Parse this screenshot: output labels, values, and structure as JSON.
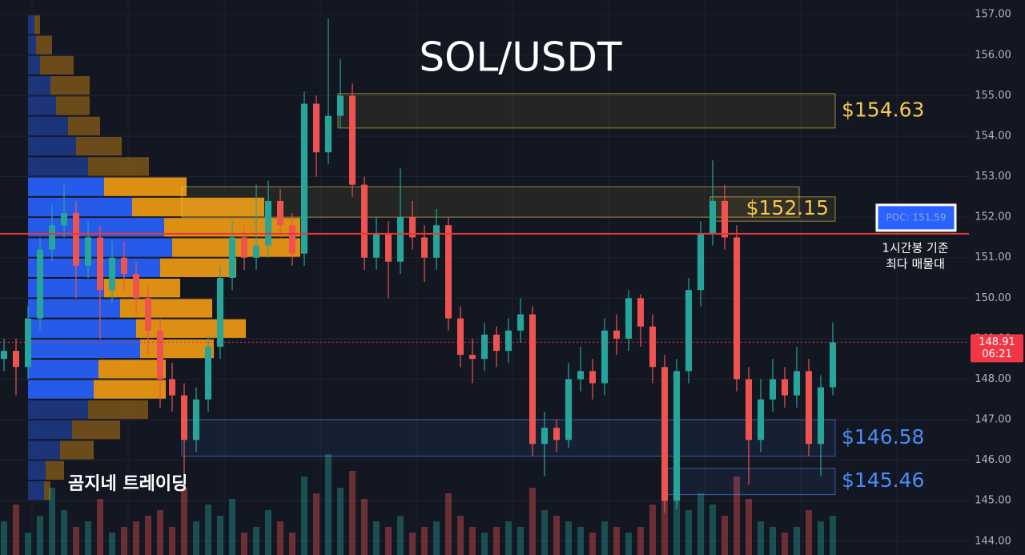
{
  "chart_data": {
    "type": "candlestick",
    "title": "SOL/USDT",
    "watermark": "곰지네 트레이딩",
    "ylim": [
      143.66,
      157.36
    ],
    "yticks": [
      {
        "value": 157,
        "label": "157.00"
      },
      {
        "value": 156,
        "label": "156.00"
      },
      {
        "value": 155,
        "label": "155.00"
      },
      {
        "value": 154,
        "label": "154.00"
      },
      {
        "value": 153,
        "label": "153.00"
      },
      {
        "value": 152,
        "label": "152.00"
      },
      {
        "value": 151,
        "label": "151.00"
      },
      {
        "value": 150,
        "label": "150.00"
      },
      {
        "value": 149,
        "label": "149.00"
      },
      {
        "value": 148,
        "label": "148.00"
      },
      {
        "value": 147,
        "label": "147.00"
      },
      {
        "value": 146,
        "label": "146.00"
      },
      {
        "value": 145,
        "label": "145.00"
      },
      {
        "value": 144,
        "label": "144.00"
      }
    ],
    "grid": true,
    "up_color": "#26a69a",
    "down_color": "#ef5350",
    "open": [
      148.5,
      148.7,
      148.3,
      149.5,
      151.2,
      151.8,
      152.1,
      150.8,
      151.5,
      150.2,
      151.0,
      150.6,
      150.0,
      149.2,
      148.0,
      147.6,
      146.5,
      147.5,
      148.8,
      150.5,
      151.5,
      151.0,
      151.3,
      152.4,
      151.8,
      151.1,
      154.8,
      153.6,
      154.5,
      155.0,
      152.8,
      151.0,
      151.6,
      150.9,
      152.0,
      151.5,
      151.0,
      151.8,
      149.5,
      148.6,
      148.5,
      149.1,
      148.7,
      149.2,
      149.6,
      146.4,
      146.8,
      146.5,
      148.0,
      148.2,
      147.9,
      149.2,
      149.0,
      150.0,
      149.3,
      148.3,
      145.0,
      148.2,
      150.2,
      151.6,
      152.4,
      151.5,
      148.0,
      146.5,
      147.5,
      148.0,
      147.6,
      148.2,
      146.4,
      147.8
    ],
    "high": [
      149.0,
      149.0,
      149.8,
      151.5,
      152.3,
      152.8,
      152.4,
      151.9,
      151.8,
      151.4,
      151.4,
      150.9,
      150.3,
      149.5,
      148.4,
      147.9,
      147.8,
      149.1,
      150.8,
      151.9,
      151.8,
      152.8,
      152.9,
      152.7,
      152.1,
      155.1,
      155.0,
      156.9,
      155.9,
      155.3,
      153.0,
      152.0,
      151.9,
      153.2,
      152.4,
      151.8,
      152.2,
      152.0,
      149.8,
      149.0,
      149.4,
      149.3,
      149.5,
      150.0,
      149.8,
      147.2,
      147.0,
      148.4,
      148.8,
      148.5,
      149.5,
      149.6,
      150.2,
      150.1,
      149.6,
      148.6,
      148.5,
      150.5,
      151.9,
      153.4,
      152.8,
      151.8,
      148.3,
      148.0,
      148.5,
      148.3,
      148.8,
      148.5,
      148.1,
      149.4
    ],
    "low": [
      148.2,
      147.6,
      148.0,
      149.2,
      150.9,
      151.5,
      150.0,
      150.5,
      149.0,
      149.9,
      150.2,
      149.6,
      148.6,
      147.3,
      147.2,
      145.6,
      146.2,
      147.2,
      148.5,
      150.2,
      150.7,
      150.7,
      151.0,
      151.5,
      150.8,
      150.8,
      153.0,
      153.3,
      154.2,
      152.5,
      150.7,
      150.7,
      150.0,
      150.6,
      151.2,
      150.4,
      150.7,
      149.2,
      148.3,
      147.9,
      148.2,
      148.3,
      148.4,
      148.9,
      146.1,
      145.6,
      146.2,
      146.3,
      147.7,
      147.5,
      147.6,
      148.6,
      148.7,
      148.8,
      147.9,
      144.7,
      144.8,
      147.9,
      149.8,
      151.3,
      151.2,
      147.7,
      145.4,
      146.2,
      147.2,
      147.3,
      147.3,
      146.1,
      145.6,
      147.6
    ],
    "close": [
      148.7,
      148.3,
      149.5,
      151.2,
      151.8,
      152.1,
      150.8,
      151.5,
      150.2,
      151.0,
      150.6,
      150.0,
      149.2,
      148.0,
      147.6,
      146.5,
      147.5,
      148.8,
      150.5,
      151.5,
      151.0,
      151.3,
      152.4,
      151.8,
      151.1,
      154.8,
      153.6,
      154.5,
      155.0,
      152.8,
      151.0,
      151.6,
      150.9,
      152.0,
      151.5,
      151.0,
      151.8,
      149.5,
      148.6,
      148.5,
      149.1,
      148.7,
      149.2,
      149.6,
      146.4,
      146.8,
      146.5,
      148.0,
      148.2,
      147.9,
      149.2,
      149.0,
      150.0,
      149.3,
      148.3,
      145.0,
      148.2,
      150.2,
      151.6,
      152.4,
      151.5,
      148.0,
      146.5,
      147.5,
      148.0,
      147.6,
      148.2,
      146.4,
      147.8,
      148.91
    ],
    "volume": [
      30,
      45,
      20,
      35,
      60,
      40,
      25,
      30,
      50,
      20,
      25,
      30,
      35,
      40,
      25,
      60,
      30,
      45,
      35,
      50,
      20,
      25,
      40,
      30,
      20,
      70,
      55,
      90,
      60,
      75,
      50,
      30,
      25,
      35,
      20,
      25,
      30,
      55,
      35,
      25,
      20,
      25,
      30,
      25,
      60,
      40,
      35,
      30,
      25,
      20,
      30,
      25,
      20,
      25,
      45,
      85,
      100,
      40,
      55,
      45,
      35,
      70,
      50,
      30,
      25,
      20,
      25,
      40,
      30,
      35
    ],
    "volume_profile": {
      "prices": [
        156.75,
        156.25,
        155.75,
        155.25,
        154.75,
        154.25,
        153.75,
        153.25,
        152.75,
        152.25,
        151.75,
        151.25,
        150.75,
        150.25,
        149.75,
        149.25,
        148.75,
        148.25,
        147.75,
        147.25,
        146.75,
        146.25,
        145.75,
        145.25
      ],
      "buy": [
        8,
        10,
        15,
        28,
        35,
        50,
        60,
        75,
        95,
        130,
        170,
        180,
        165,
        95,
        115,
        135,
        140,
        88,
        82,
        75,
        55,
        40,
        22,
        20
      ],
      "sell": [
        7,
        20,
        42,
        49,
        42,
        40,
        57,
        76,
        103,
        165,
        170,
        160,
        95,
        95,
        115,
        137,
        92,
        84,
        90,
        75,
        60,
        42,
        23,
        8
      ],
      "buy_color": "#2962ff",
      "sell_color": "#f39c12",
      "value_area": [
        147.5,
        153.0
      ]
    },
    "zones": [
      {
        "low": 154.2,
        "high": 155.05,
        "from": 28,
        "to": 69,
        "label": "$154.63",
        "color": "#f7c948"
      },
      {
        "low": 152.0,
        "high": 152.75,
        "from": 15,
        "to": 66,
        "color": "#f7c948"
      },
      {
        "low": 151.9,
        "high": 152.5,
        "from": 59,
        "to": 69,
        "label": "$152.15",
        "color": "#f7c948"
      },
      {
        "low": 146.1,
        "high": 147.0,
        "from": 15,
        "to": 69,
        "label": "$146.58",
        "color": "#4a8cf7"
      },
      {
        "low": 145.15,
        "high": 145.8,
        "from": 55,
        "to": 69,
        "label": "$145.46",
        "color": "#4a8cf7"
      }
    ],
    "poc": {
      "value": 151.59,
      "label": "POC: 151.59",
      "color": "#e53935"
    },
    "poc_note": [
      "1시간봉 기준",
      "최다 매물대"
    ],
    "last_price": {
      "value": 148.91,
      "time": "06:21",
      "color": "#f23645"
    }
  }
}
